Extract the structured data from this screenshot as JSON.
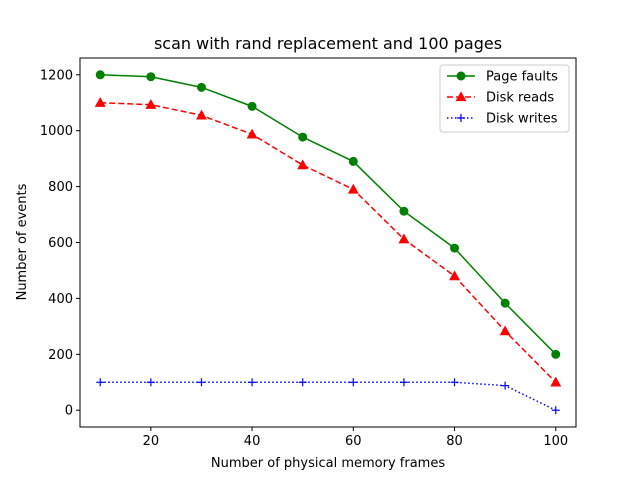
{
  "chart_data": {
    "type": "line",
    "title": "scan with rand replacement and 100 pages",
    "xlabel": "Number of physical memory frames",
    "ylabel": "Number of events",
    "xlim": [
      6,
      104
    ],
    "ylim": [
      -60,
      1260
    ],
    "xticks": [
      20,
      40,
      60,
      80,
      100
    ],
    "yticks": [
      0,
      200,
      400,
      600,
      800,
      1000,
      1200
    ],
    "grid": false,
    "legend_position": "top-right",
    "x": [
      10,
      20,
      30,
      40,
      50,
      60,
      70,
      80,
      90,
      100
    ],
    "series": [
      {
        "name": "Page faults",
        "values": [
          1200,
          1193,
          1155,
          1087,
          977,
          890,
          712,
          580,
          383,
          200
        ],
        "color": "#008000",
        "linestyle": "solid",
        "marker": "circle"
      },
      {
        "name": "Disk reads",
        "values": [
          1100,
          1093,
          1055,
          987,
          877,
          790,
          612,
          480,
          283,
          100
        ],
        "color": "#ff0000",
        "linestyle": "dashed",
        "marker": "triangle"
      },
      {
        "name": "Disk writes",
        "values": [
          100,
          100,
          100,
          100,
          100,
          100,
          100,
          100,
          88,
          0
        ],
        "color": "#0000ff",
        "linestyle": "dotted",
        "marker": "plus"
      }
    ]
  }
}
